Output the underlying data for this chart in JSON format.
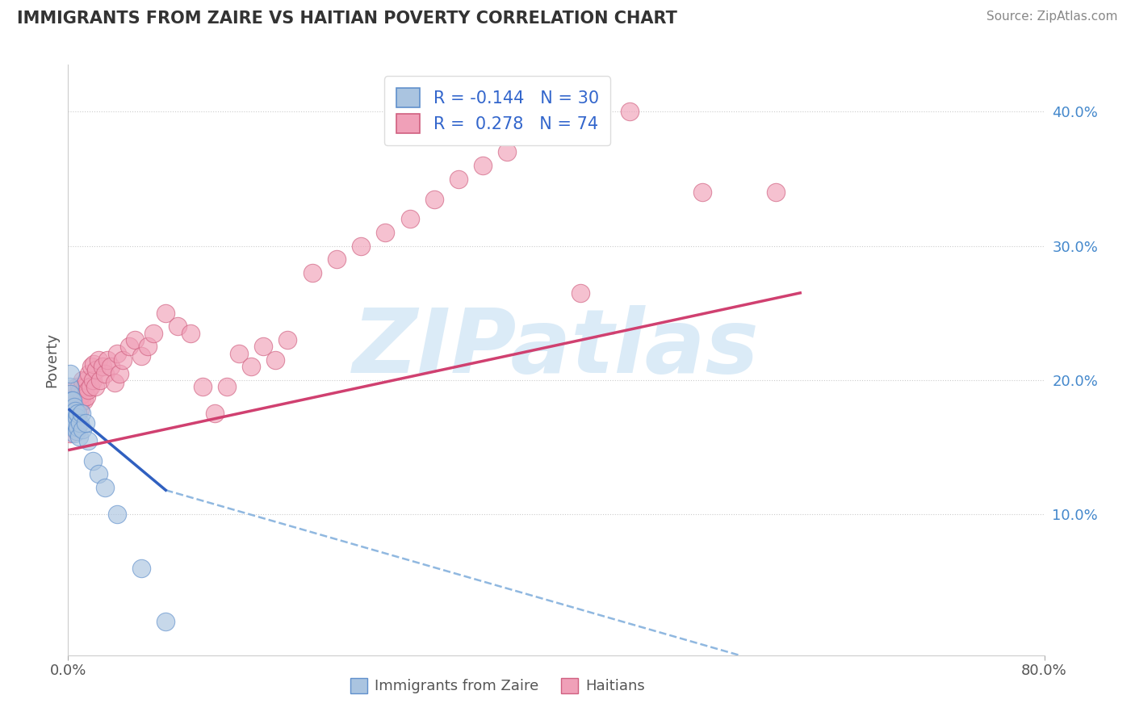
{
  "title": "IMMIGRANTS FROM ZAIRE VS HAITIAN POVERTY CORRELATION CHART",
  "source": "Source: ZipAtlas.com",
  "legend_labels": [
    "Immigrants from Zaire",
    "Haitians"
  ],
  "ylabel": "Poverty",
  "xlim": [
    0.0,
    0.8
  ],
  "ylim": [
    -0.005,
    0.435
  ],
  "y_ticks_right": [
    0.1,
    0.2,
    0.3,
    0.4
  ],
  "y_tick_labels_right": [
    "10.0%",
    "20.0%",
    "30.0%",
    "40.0%"
  ],
  "R_blue": -0.144,
  "N_blue": 30,
  "R_pink": 0.278,
  "N_pink": 74,
  "blue_dot_color": "#aac4e0",
  "blue_dot_edge": "#6090cc",
  "pink_dot_color": "#f0a0b8",
  "pink_dot_edge": "#d06080",
  "blue_line_color": "#3060c0",
  "pink_line_color": "#d04070",
  "dash_line_color": "#90b8e0",
  "watermark": "ZIPatlas",
  "watermark_color": "#b8d8f0",
  "blue_scatter_x": [
    0.001,
    0.002,
    0.002,
    0.003,
    0.003,
    0.003,
    0.004,
    0.004,
    0.004,
    0.005,
    0.005,
    0.005,
    0.006,
    0.006,
    0.007,
    0.007,
    0.008,
    0.008,
    0.009,
    0.01,
    0.011,
    0.012,
    0.014,
    0.016,
    0.02,
    0.025,
    0.03,
    0.04,
    0.06,
    0.08
  ],
  "blue_scatter_y": [
    0.195,
    0.205,
    0.19,
    0.175,
    0.185,
    0.17,
    0.165,
    0.175,
    0.185,
    0.16,
    0.17,
    0.18,
    0.168,
    0.177,
    0.162,
    0.172,
    0.165,
    0.175,
    0.158,
    0.168,
    0.175,
    0.163,
    0.168,
    0.155,
    0.14,
    0.13,
    0.12,
    0.1,
    0.06,
    0.02
  ],
  "pink_scatter_x": [
    0.001,
    0.002,
    0.002,
    0.003,
    0.003,
    0.004,
    0.004,
    0.005,
    0.005,
    0.006,
    0.006,
    0.007,
    0.007,
    0.008,
    0.008,
    0.009,
    0.009,
    0.01,
    0.01,
    0.011,
    0.012,
    0.012,
    0.013,
    0.014,
    0.015,
    0.015,
    0.016,
    0.017,
    0.018,
    0.019,
    0.02,
    0.021,
    0.022,
    0.023,
    0.025,
    0.026,
    0.028,
    0.03,
    0.032,
    0.035,
    0.038,
    0.04,
    0.042,
    0.045,
    0.05,
    0.055,
    0.06,
    0.065,
    0.07,
    0.08,
    0.09,
    0.1,
    0.11,
    0.12,
    0.13,
    0.14,
    0.15,
    0.16,
    0.17,
    0.18,
    0.2,
    0.22,
    0.24,
    0.26,
    0.28,
    0.3,
    0.32,
    0.34,
    0.36,
    0.38,
    0.42,
    0.46,
    0.52,
    0.58
  ],
  "pink_scatter_y": [
    0.165,
    0.16,
    0.175,
    0.17,
    0.185,
    0.165,
    0.178,
    0.172,
    0.182,
    0.175,
    0.188,
    0.18,
    0.195,
    0.175,
    0.188,
    0.182,
    0.195,
    0.178,
    0.192,
    0.185,
    0.19,
    0.2,
    0.185,
    0.195,
    0.188,
    0.2,
    0.193,
    0.205,
    0.195,
    0.21,
    0.2,
    0.212,
    0.195,
    0.208,
    0.215,
    0.2,
    0.21,
    0.205,
    0.215,
    0.21,
    0.198,
    0.22,
    0.205,
    0.215,
    0.225,
    0.23,
    0.218,
    0.225,
    0.235,
    0.25,
    0.24,
    0.235,
    0.195,
    0.175,
    0.195,
    0.22,
    0.21,
    0.225,
    0.215,
    0.23,
    0.28,
    0.29,
    0.3,
    0.31,
    0.32,
    0.335,
    0.35,
    0.36,
    0.37,
    0.385,
    0.265,
    0.4,
    0.34,
    0.34
  ],
  "blue_line_x": [
    0.001,
    0.08
  ],
  "blue_line_y": [
    0.178,
    0.118
  ],
  "dash_line_x": [
    0.08,
    0.55
  ],
  "dash_line_y": [
    0.118,
    -0.005
  ],
  "pink_line_x": [
    0.001,
    0.6
  ],
  "pink_line_y": [
    0.148,
    0.265
  ]
}
